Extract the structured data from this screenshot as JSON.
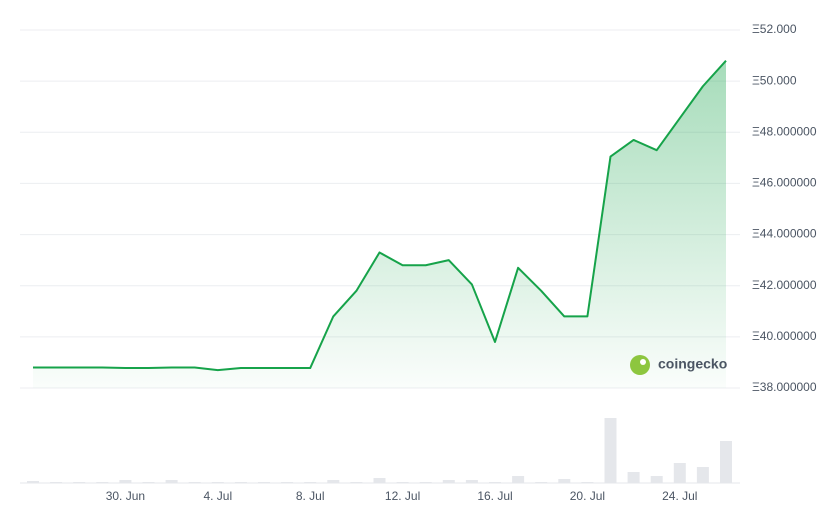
{
  "chart_data": {
    "type": "line",
    "categories": [
      null,
      null,
      null,
      null,
      "30. Jun",
      null,
      null,
      null,
      "4. Jul",
      null,
      null,
      null,
      "8. Jul",
      null,
      null,
      null,
      "12. Jul",
      null,
      null,
      null,
      "16. Jul",
      null,
      null,
      null,
      "20. Jul",
      null,
      null,
      null,
      "24. Jul",
      null,
      null
    ],
    "series": [
      {
        "color": "#16a34a",
        "values": [
          38.8,
          38.8,
          38.8,
          38.8,
          38.78,
          38.78,
          38.8,
          38.8,
          38.7,
          38.78,
          38.78,
          38.78,
          38.78,
          40.8,
          41.8,
          43.3,
          42.8,
          42.8,
          43.0,
          42.05,
          39.8,
          42.7,
          41.8,
          40.8,
          40.8,
          47.05,
          47.7,
          47.3,
          48.55,
          49.8,
          50.8
        ]
      },
      {
        "axis": "volume",
        "color": "#e5e7eb",
        "values": [
          2,
          1,
          1,
          1,
          3,
          1,
          3,
          1,
          1,
          1,
          1,
          1,
          1,
          3,
          1,
          5,
          1,
          1,
          3,
          3,
          1,
          7,
          1,
          4,
          1,
          65,
          11,
          7,
          20,
          16,
          42
        ]
      }
    ],
    "ylim": [
      38,
      52
    ],
    "yticks": [
      {
        "value": 52,
        "label": "Ξ52.000"
      },
      {
        "value": 50,
        "label": "Ξ50.000"
      },
      {
        "value": 48,
        "label": "Ξ48.000000"
      },
      {
        "value": 46,
        "label": "Ξ46.000000"
      },
      {
        "value": 44,
        "label": "Ξ44.000000"
      },
      {
        "value": 42,
        "label": "Ξ42.000000"
      },
      {
        "value": 40,
        "label": "Ξ40.000000"
      },
      {
        "value": 38,
        "label": "Ξ38.000000"
      }
    ],
    "volume_ylim": [
      0,
      73
    ],
    "grid": true,
    "watermark": "coingecko"
  }
}
